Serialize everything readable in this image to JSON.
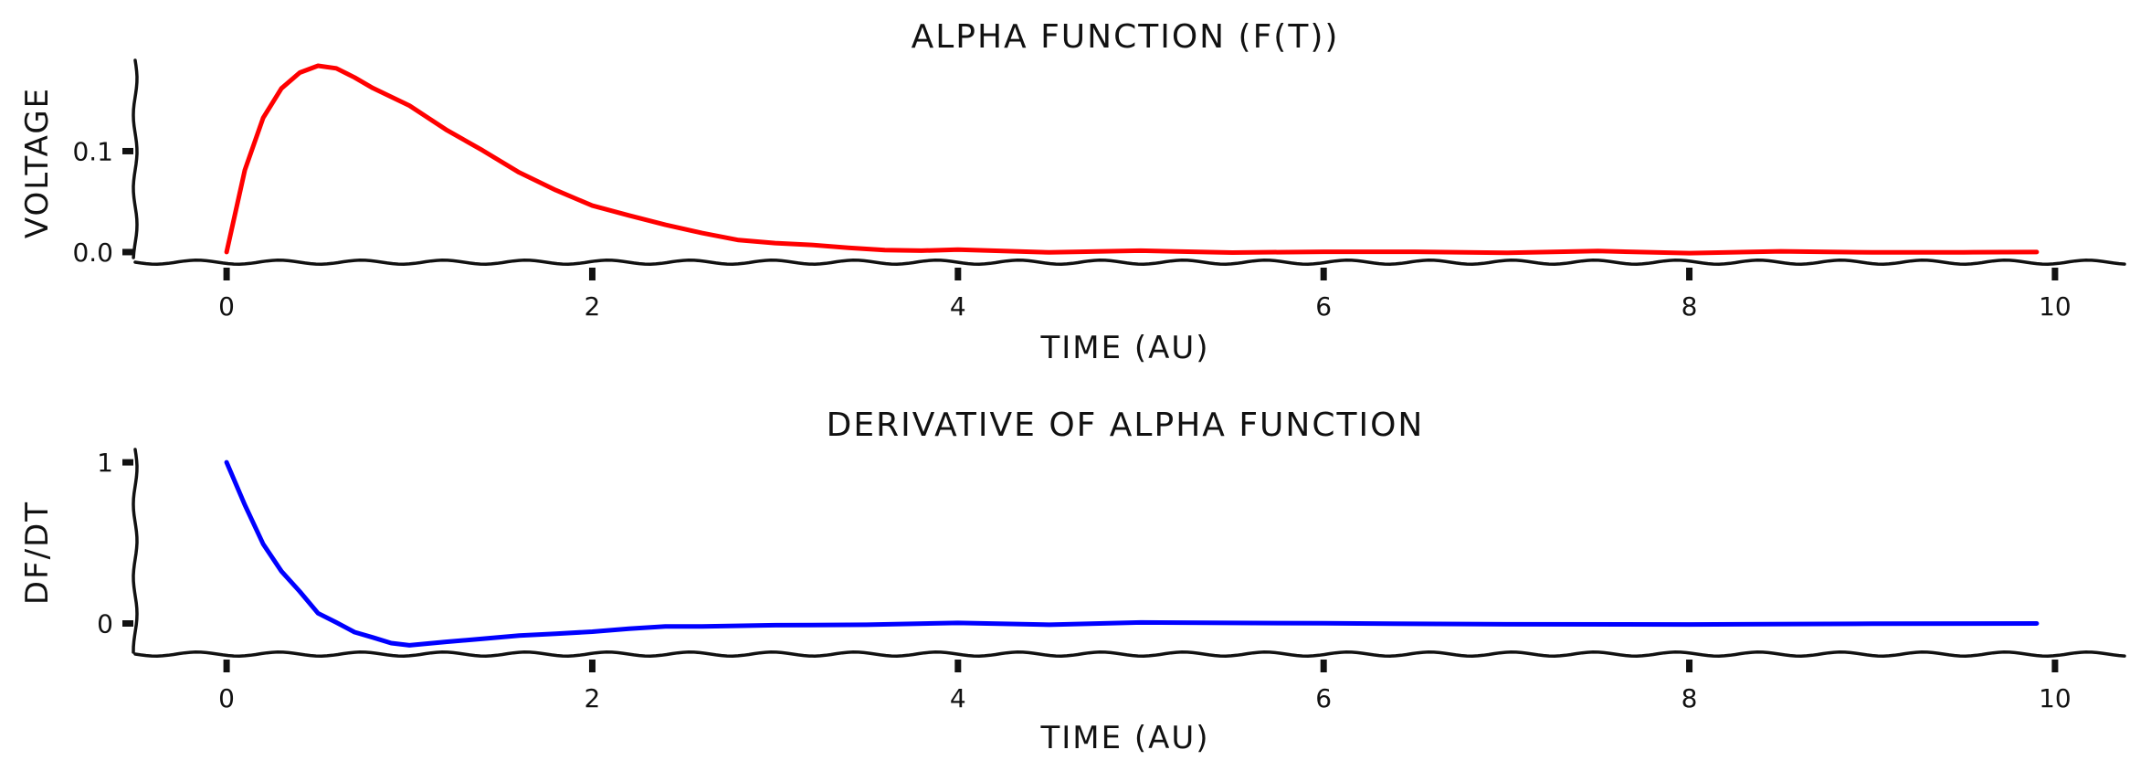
{
  "chart_data": [
    {
      "type": "line",
      "title": "Alpha function (f(t))",
      "xlabel": "Time (AU)",
      "ylabel": "Voltage",
      "xlim": [
        -0.5,
        10.4
      ],
      "ylim": [
        -0.01,
        0.19
      ],
      "xticks": [
        "0",
        "2",
        "4",
        "6",
        "8",
        "10"
      ],
      "xtick_values": [
        0,
        2,
        4,
        6,
        8,
        10
      ],
      "yticks": [
        "0.0",
        "0.1"
      ],
      "ytick_values": [
        0.0,
        0.1
      ],
      "grid": false,
      "series": [
        {
          "color": "#ff0000",
          "x": [
            0,
            0.1,
            0.2,
            0.3,
            0.4,
            0.5,
            0.6,
            0.7,
            0.8,
            1.0,
            1.2,
            1.4,
            1.6,
            1.8,
            2.0,
            2.2,
            2.4,
            2.6,
            2.8,
            3.0,
            3.2,
            3.4,
            3.6,
            3.8,
            4.0,
            4.5,
            5.0,
            5.5,
            6.0,
            6.5,
            7.0,
            7.5,
            8.0,
            8.5,
            9.0,
            9.5,
            9.9
          ],
          "y": [
            0.0,
            0.082,
            0.134,
            0.163,
            0.178,
            0.184,
            0.181,
            0.172,
            0.162,
            0.146,
            0.122,
            0.1,
            0.078,
            0.062,
            0.047,
            0.036,
            0.026,
            0.019,
            0.013,
            0.009,
            0.006,
            0.004,
            0.003,
            0.002,
            0.0015,
            0.0008,
            0.0004,
            0.0002,
            0.0001,
            0.0,
            0.0,
            0.0,
            0.0,
            0.0,
            0.0,
            0.0,
            0.0
          ]
        }
      ]
    },
    {
      "type": "line",
      "title": "Derivative of alpha function",
      "xlabel": "Time (AU)",
      "ylabel": "df/dt",
      "xlim": [
        -0.5,
        10.4
      ],
      "ylim": [
        -0.19,
        1.08
      ],
      "xticks": [
        "0",
        "2",
        "4",
        "6",
        "8",
        "10"
      ],
      "xtick_values": [
        0,
        2,
        4,
        6,
        8,
        10
      ],
      "yticks": [
        "0",
        "1"
      ],
      "ytick_values": [
        0,
        1
      ],
      "grid": false,
      "series": [
        {
          "color": "#0000ff",
          "x": [
            0,
            0.1,
            0.2,
            0.3,
            0.4,
            0.5,
            0.6,
            0.7,
            0.8,
            0.9,
            1.0,
            1.2,
            1.4,
            1.6,
            1.8,
            2.0,
            2.2,
            2.4,
            2.6,
            3.0,
            3.5,
            4.0,
            4.5,
            5.0,
            6.0,
            7.0,
            8.0,
            9.0,
            9.9
          ],
          "y": [
            1.0,
            0.74,
            0.5,
            0.33,
            0.2,
            0.06,
            0.0,
            -0.06,
            -0.09,
            -0.12,
            -0.13,
            -0.11,
            -0.1,
            -0.08,
            -0.06,
            -0.045,
            -0.035,
            -0.025,
            -0.018,
            -0.01,
            -0.005,
            -0.002,
            -0.001,
            0.0,
            0.0,
            0.0,
            0.0,
            0.0,
            0.0
          ]
        }
      ]
    }
  ]
}
